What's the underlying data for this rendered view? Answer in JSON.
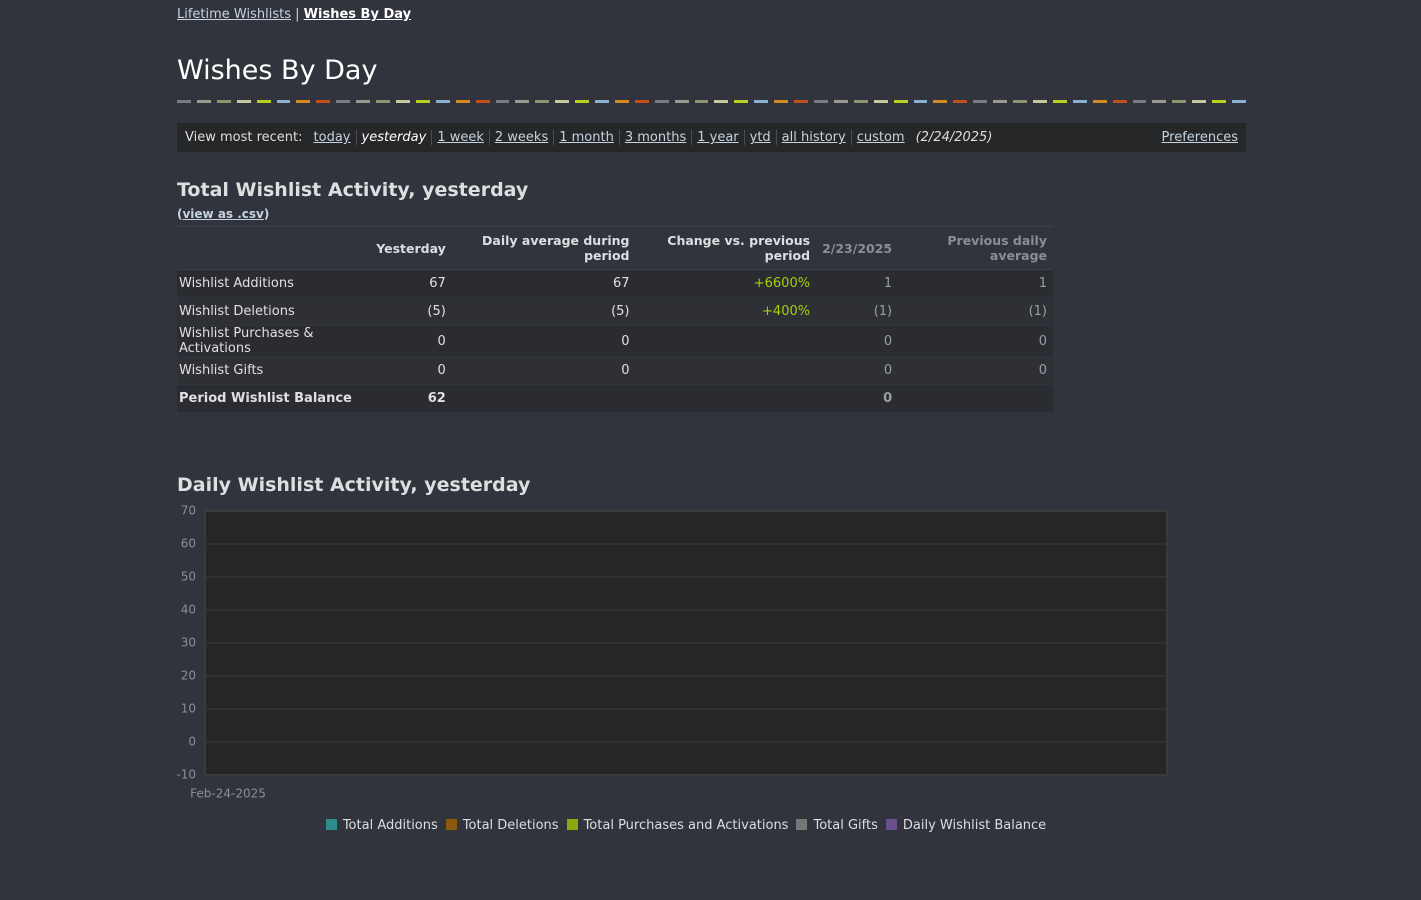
{
  "breadcrumb": {
    "items": [
      "Lifetime Wishlists",
      "Wishes By Day"
    ],
    "separator": "|"
  },
  "header": {
    "title": "Wishes By Day"
  },
  "range_bar": {
    "label": "View most recent:",
    "options": [
      "today",
      "yesterday",
      "1 week",
      "2 weeks",
      "1 month",
      "3 months",
      "1 year",
      "ytd",
      "all history",
      "custom"
    ],
    "selected": 1,
    "date": "(2/24/2025)",
    "preferences": "Preferences"
  },
  "summary": {
    "title": "Total Wishlist Activity, yesterday",
    "csv_prefix": "(",
    "csv_link": "view as .csv",
    "csv_suffix": ")"
  },
  "table": {
    "columns": [
      "Yesterday",
      "Daily average during period",
      "Change vs. previous period",
      "2/23/2025",
      "Previous daily average"
    ],
    "rows": [
      {
        "label": "Wishlist Additions",
        "cells": [
          "67",
          "67",
          "+6600%",
          "1",
          "1"
        ]
      },
      {
        "label": "Wishlist Deletions",
        "cells": [
          "(5)",
          "(5)",
          "+400%",
          "(1)",
          "(1)"
        ]
      },
      {
        "label": "Wishlist Purchases & Activations",
        "cells": [
          "0",
          "0",
          null,
          "0",
          "0"
        ]
      },
      {
        "label": "Wishlist Gifts",
        "cells": [
          "0",
          "0",
          null,
          "0",
          "0"
        ]
      },
      {
        "label": "Period Wishlist Balance",
        "cells": [
          "62",
          null,
          null,
          "0",
          null
        ],
        "bold": true
      }
    ]
  },
  "chart_data": {
    "type": "line",
    "title": "Daily Wishlist Activity, yesterday",
    "categories": [
      "Feb-24-2025"
    ],
    "series": [
      {
        "name": "Total Additions",
        "color": "#2f8c8c",
        "values": [
          null
        ]
      },
      {
        "name": "Total Deletions",
        "color": "#8a5a0e",
        "values": [
          null
        ]
      },
      {
        "name": "Total Purchases and Activations",
        "color": "#8fa80c",
        "values": [
          null
        ]
      },
      {
        "name": "Total Gifts",
        "color": "#777777",
        "values": [
          null
        ]
      },
      {
        "name": "Daily Wishlist Balance",
        "color": "#6a4f8c",
        "values": [
          null
        ]
      }
    ],
    "ylim": [
      -10,
      70
    ],
    "yticks": [
      -10,
      0,
      10,
      20,
      30,
      40,
      50,
      60,
      70
    ],
    "grid": true
  }
}
